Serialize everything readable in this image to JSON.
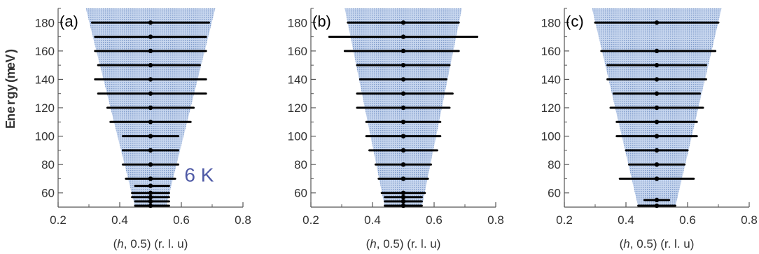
{
  "chart_data": [
    {
      "type": "scatter",
      "panel_label": "(a)",
      "xlabel": "(h, 0.5) (r. l. u)",
      "ylabel": "Energy (meV)",
      "xlim": [
        0.2,
        0.8
      ],
      "ylim": [
        50,
        190
      ],
      "x_ticks": [
        0.2,
        0.4,
        0.6,
        0.8
      ],
      "y_ticks": [
        60,
        80,
        100,
        120,
        140,
        160,
        180
      ],
      "annotation": "6 K",
      "shaded_region": {
        "bottom_y": 50,
        "top_y": 190,
        "bottom_x": [
          0.45,
          0.55
        ],
        "top_x": [
          0.29,
          0.71
        ]
      },
      "series": [
        {
          "points": [
            {
              "x": 0.5,
              "y": 180,
              "width_low": 0.31,
              "width_high": 0.69
            },
            {
              "x": 0.5,
              "y": 170,
              "width_low": 0.32,
              "width_high": 0.68
            },
            {
              "x": 0.5,
              "y": 160,
              "width_low": 0.32,
              "width_high": 0.68
            },
            {
              "x": 0.5,
              "y": 150,
              "width_low": 0.33,
              "width_high": 0.66
            },
            {
              "x": 0.5,
              "y": 140,
              "width_low": 0.32,
              "width_high": 0.68
            },
            {
              "x": 0.5,
              "y": 130,
              "width_low": 0.33,
              "width_high": 0.68
            },
            {
              "x": 0.5,
              "y": 120,
              "width_low": 0.36,
              "width_high": 0.64
            },
            {
              "x": 0.5,
              "y": 110,
              "width_low": 0.37,
              "width_high": 0.63
            },
            {
              "x": 0.5,
              "y": 100,
              "width_low": 0.41,
              "width_high": 0.59
            },
            {
              "x": 0.5,
              "y": 90,
              "width_low": 0.41,
              "width_high": 0.59
            },
            {
              "x": 0.5,
              "y": 80,
              "width_low": 0.41,
              "width_high": 0.59
            },
            {
              "x": 0.5,
              "y": 70,
              "width_low": 0.42,
              "width_high": 0.58
            },
            {
              "x": 0.5,
              "y": 65,
              "width_low": 0.45,
              "width_high": 0.56
            },
            {
              "x": 0.5,
              "y": 60,
              "width_low": 0.44,
              "width_high": 0.56
            },
            {
              "x": 0.5,
              "y": 57,
              "width_low": 0.44,
              "width_high": 0.56
            },
            {
              "x": 0.5,
              "y": 54,
              "width_low": 0.45,
              "width_high": 0.56
            },
            {
              "x": 0.5,
              "y": 51,
              "width_low": 0.45,
              "width_high": 0.56
            }
          ]
        }
      ]
    },
    {
      "type": "scatter",
      "panel_label": "(b)",
      "xlabel": "(h, 0.5) (r. l. u)",
      "xlim": [
        0.2,
        0.8
      ],
      "ylim": [
        50,
        190
      ],
      "x_ticks": [
        0.2,
        0.4,
        0.6,
        0.8
      ],
      "y_ticks": [
        60,
        80,
        100,
        120,
        140,
        160,
        180
      ],
      "shaded_region": {
        "bottom_y": 50,
        "top_y": 190,
        "bottom_x": [
          0.44,
          0.56
        ],
        "top_x": [
          0.31,
          0.69
        ]
      },
      "series": [
        {
          "points": [
            {
              "x": 0.5,
              "y": 180,
              "width_low": 0.32,
              "width_high": 0.68
            },
            {
              "x": 0.5,
              "y": 170,
              "width_low": 0.26,
              "width_high": 0.74
            },
            {
              "x": 0.5,
              "y": 160,
              "width_low": 0.31,
              "width_high": 0.68
            },
            {
              "x": 0.5,
              "y": 150,
              "width_low": 0.35,
              "width_high": 0.65
            },
            {
              "x": 0.5,
              "y": 140,
              "width_low": 0.36,
              "width_high": 0.64
            },
            {
              "x": 0.5,
              "y": 130,
              "width_low": 0.35,
              "width_high": 0.66
            },
            {
              "x": 0.5,
              "y": 120,
              "width_low": 0.35,
              "width_high": 0.65
            },
            {
              "x": 0.5,
              "y": 110,
              "width_low": 0.38,
              "width_high": 0.62
            },
            {
              "x": 0.5,
              "y": 100,
              "width_low": 0.38,
              "width_high": 0.62
            },
            {
              "x": 0.5,
              "y": 90,
              "width_low": 0.39,
              "width_high": 0.61
            },
            {
              "x": 0.5,
              "y": 80,
              "width_low": 0.41,
              "width_high": 0.59
            },
            {
              "x": 0.5,
              "y": 70,
              "width_low": 0.42,
              "width_high": 0.58
            },
            {
              "x": 0.5,
              "y": 60,
              "width_low": 0.43,
              "width_high": 0.57
            },
            {
              "x": 0.5,
              "y": 57,
              "width_low": 0.44,
              "width_high": 0.56
            },
            {
              "x": 0.5,
              "y": 54,
              "width_low": 0.44,
              "width_high": 0.56
            },
            {
              "x": 0.5,
              "y": 51,
              "width_low": 0.44,
              "width_high": 0.56
            }
          ]
        }
      ]
    },
    {
      "type": "scatter",
      "panel_label": "(c)",
      "xlabel": "(h, 0.5) (r. l. u)",
      "xlim": [
        0.2,
        0.8
      ],
      "ylim": [
        50,
        190
      ],
      "x_ticks": [
        0.2,
        0.4,
        0.6,
        0.8
      ],
      "y_ticks": [
        60,
        80,
        100,
        120,
        140,
        160,
        180
      ],
      "shaded_region": {
        "bottom_y": 50,
        "top_y": 190,
        "bottom_x": [
          0.44,
          0.56
        ],
        "top_x": [
          0.29,
          0.71
        ]
      },
      "series": [
        {
          "points": [
            {
              "x": 0.5,
              "y": 180,
              "width_low": 0.3,
              "width_high": 0.7
            },
            {
              "x": 0.5,
              "y": 160,
              "width_low": 0.32,
              "width_high": 0.69
            },
            {
              "x": 0.5,
              "y": 150,
              "width_low": 0.34,
              "width_high": 0.66
            },
            {
              "x": 0.5,
              "y": 140,
              "width_low": 0.34,
              "width_high": 0.66
            },
            {
              "x": 0.5,
              "y": 130,
              "width_low": 0.36,
              "width_high": 0.64
            },
            {
              "x": 0.5,
              "y": 120,
              "width_low": 0.35,
              "width_high": 0.65
            },
            {
              "x": 0.5,
              "y": 110,
              "width_low": 0.37,
              "width_high": 0.63
            },
            {
              "x": 0.5,
              "y": 100,
              "width_low": 0.37,
              "width_high": 0.63
            },
            {
              "x": 0.5,
              "y": 90,
              "width_low": 0.4,
              "width_high": 0.6
            },
            {
              "x": 0.5,
              "y": 80,
              "width_low": 0.41,
              "width_high": 0.59
            },
            {
              "x": 0.5,
              "y": 70,
              "width_low": 0.38,
              "width_high": 0.62
            },
            {
              "x": 0.5,
              "y": 55,
              "width_low": 0.46,
              "width_high": 0.54
            },
            {
              "x": 0.5,
              "y": 51,
              "width_low": 0.44,
              "width_high": 0.56
            }
          ]
        }
      ]
    }
  ],
  "colors": {
    "shade_fill": "#b3c7e6",
    "shade_dot": "#8ea7d0",
    "marker": "#000000",
    "annotation": "#4f5aa6",
    "axis": "#555555"
  }
}
